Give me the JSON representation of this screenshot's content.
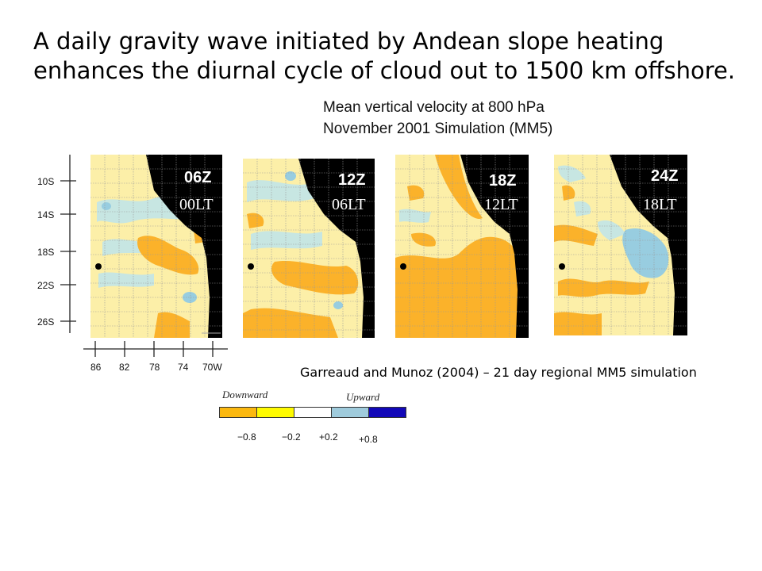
{
  "title": {
    "line1": "A daily gravity wave initiated by Andean slope heating",
    "line2": "enhances the diurnal cycle of cloud out to 1500 km offshore."
  },
  "subtitle": {
    "line1": "Mean vertical velocity at 800 hPa",
    "line2": "November 2001 Simulation (MM5)"
  },
  "panels": [
    {
      "utc": "06Z",
      "local": "00LT"
    },
    {
      "utc": "12Z",
      "local": "06LT"
    },
    {
      "utc": "18Z",
      "local": "12LT"
    },
    {
      "utc": "24Z",
      "local": "18LT"
    }
  ],
  "axes": {
    "latitudes": [
      "10S",
      "14S",
      "18S",
      "22S",
      "26S"
    ],
    "longitudes": [
      "86",
      "82",
      "78",
      "74",
      "70W"
    ]
  },
  "citation": "Garreaud and Munoz (2004) – 21 day regional MM5 simulation",
  "legend": {
    "downward_label": "Downward",
    "upward_label": "Upward",
    "ticks": [
      "−0.8",
      "−0.2",
      "+0.2",
      "+0.8"
    ],
    "colors": [
      "#fbb80f",
      "#fffb00",
      "#ffffff",
      "#9fcbdc",
      "#1208b8"
    ]
  },
  "colors": {
    "land": "#000000",
    "weak_down": "#fcefa8",
    "strong_down": "#fbb22a",
    "weak_up": "#c7e6e2",
    "strong_up": "#98cde0",
    "grid": "#999999"
  }
}
